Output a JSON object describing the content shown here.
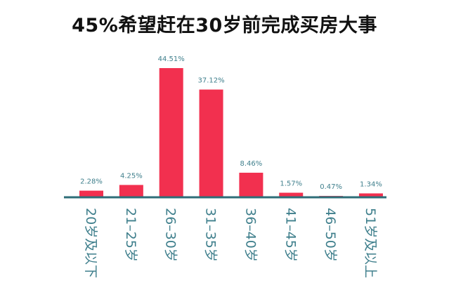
{
  "title": "45%希望赶在30岁前完成买房大事",
  "colors": {
    "bar": "#f2304f",
    "axis": "#2e6e78",
    "label": "#3f7f8c"
  },
  "chart_data": {
    "type": "bar",
    "title": "45%希望赶在30岁前完成买房大事",
    "categories": [
      "20岁及以下",
      "21–25岁",
      "26–30岁",
      "31–35岁",
      "36–40岁",
      "41–45岁",
      "46–50岁",
      "51岁及以上"
    ],
    "values": [
      2.28,
      4.25,
      44.51,
      37.12,
      8.46,
      1.57,
      0.47,
      1.34
    ],
    "value_labels": [
      "2.28%",
      "4.25%",
      "44.51%",
      "37.12%",
      "8.46%",
      "1.57%",
      "0.47%",
      "1.34%"
    ],
    "ylim": [
      0,
      44.51
    ],
    "grid": false,
    "legend": "none",
    "xlabel": "",
    "ylabel": ""
  }
}
